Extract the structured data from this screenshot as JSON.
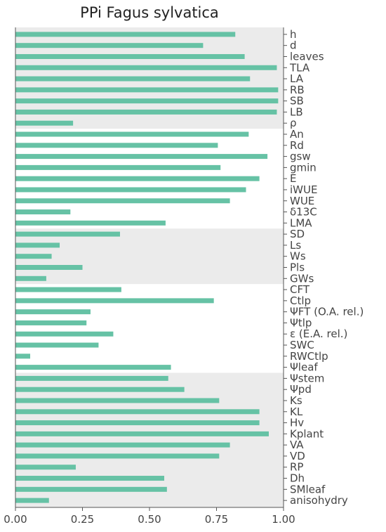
{
  "chart_data": {
    "type": "bar",
    "orientation": "horizontal",
    "title": "PPi Fagus sylvatica",
    "xlabel": "",
    "ylabel": "",
    "xlim": [
      0,
      1
    ],
    "xticks": [
      "0.00",
      "0.25",
      "0.50",
      "0.75",
      "1.00"
    ],
    "xtick_values": [
      0,
      0.25,
      0.5,
      0.75,
      1.0
    ],
    "y_axis_side": "right",
    "bar_color": "#66c2a5",
    "band_color": "#ebebeb",
    "categories": [
      "h",
      "d",
      "leaves",
      "TLA",
      "LA",
      "RB",
      "SB",
      "LB",
      "ρ",
      "An",
      "Rd",
      "gsw",
      "gmin",
      "E",
      "iWUE",
      "WUE",
      "δ13C",
      "LMA",
      "SD",
      "Ls",
      "Ws",
      "Pls",
      "GWs",
      "CFT",
      "Ctlp",
      "ΨFT (O.A. rel.)",
      "Ψtlp",
      "ε (E.A. rel.)",
      "SWC",
      "RWCtlp",
      "Ψleaf",
      "Ψstem",
      "Ψpd",
      "Ks",
      "KL",
      "Hv",
      "Kplant",
      "VA",
      "VD",
      "RP",
      "Dh",
      "SMleaf",
      "anisohydry"
    ],
    "values": [
      0.82,
      0.7,
      0.855,
      0.975,
      0.875,
      0.98,
      0.98,
      0.975,
      0.215,
      0.87,
      0.755,
      0.94,
      0.765,
      0.91,
      0.86,
      0.8,
      0.205,
      0.56,
      0.39,
      0.165,
      0.135,
      0.25,
      0.115,
      0.395,
      0.74,
      0.28,
      0.265,
      0.365,
      0.31,
      0.055,
      0.58,
      0.57,
      0.63,
      0.76,
      0.91,
      0.91,
      0.945,
      0.8,
      0.76,
      0.225,
      0.555,
      0.565,
      0.125
    ],
    "bands": [
      {
        "from": "h",
        "to": "ρ"
      },
      {
        "from": "SD",
        "to": "GWs"
      },
      {
        "from": "Ψstem",
        "to": "anisohydry"
      }
    ]
  }
}
